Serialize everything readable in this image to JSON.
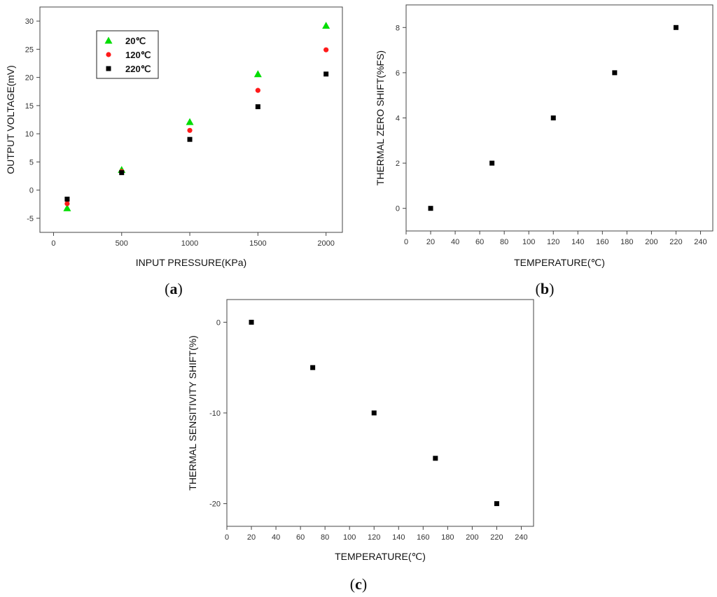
{
  "chart_data": [
    {
      "type": "scatter",
      "panel_label": "(a)",
      "xlabel": "INPUT PRESSURE(KPa)",
      "ylabel": "OUTPUT VOLTAGE(mV)",
      "xlim": [
        -100,
        2120
      ],
      "ylim": [
        -7.5,
        32.5
      ],
      "xticks": [
        0,
        500,
        1000,
        1500,
        2000
      ],
      "yticks": [
        -5,
        0,
        5,
        10,
        15,
        20,
        25,
        30
      ],
      "legend_position": "top-left",
      "series": [
        {
          "name": "20℃",
          "marker": "triangle",
          "color": "#00dd00",
          "x": [
            100,
            500,
            1000,
            1500,
            2000
          ],
          "y": [
            -3.2,
            3.6,
            12.1,
            20.6,
            29.2
          ]
        },
        {
          "name": "120℃",
          "marker": "circle",
          "color": "#ff1a1a",
          "x": [
            100,
            500,
            1000,
            1500,
            2000
          ],
          "y": [
            -2.4,
            3.3,
            10.6,
            17.7,
            24.9
          ]
        },
        {
          "name": "220℃",
          "marker": "square",
          "color": "#000000",
          "x": [
            100,
            500,
            1000,
            1500,
            2000
          ],
          "y": [
            -1.6,
            3.1,
            9.0,
            14.8,
            20.6
          ]
        }
      ]
    },
    {
      "type": "scatter",
      "panel_label": "(b)",
      "xlabel": "TEMPERATURE(℃)",
      "ylabel": "THERMAL ZERO SHIFT(%FS)",
      "xlim": [
        0,
        250
      ],
      "ylim": [
        -1,
        9
      ],
      "xticks": [
        0,
        20,
        40,
        60,
        80,
        100,
        120,
        140,
        160,
        180,
        200,
        220,
        240
      ],
      "yticks": [
        0,
        2,
        4,
        6,
        8
      ],
      "series": [
        {
          "marker": "square",
          "color": "#000000",
          "x": [
            20,
            70,
            120,
            170,
            220
          ],
          "y": [
            0,
            2,
            4,
            6,
            8
          ]
        }
      ]
    },
    {
      "type": "scatter",
      "panel_label": "(c)",
      "xlabel": "TEMPERATURE(℃)",
      "ylabel": "THERMAL SENSITIVITY SHIFT(%)",
      "xlim": [
        0,
        250
      ],
      "ylim": [
        -22.5,
        2.5
      ],
      "xticks": [
        0,
        20,
        40,
        60,
        80,
        100,
        120,
        140,
        160,
        180,
        200,
        220,
        240
      ],
      "yticks": [
        0,
        -10,
        -20
      ],
      "series": [
        {
          "marker": "square",
          "color": "#000000",
          "x": [
            20,
            70,
            120,
            170,
            220
          ],
          "y": [
            0,
            -5,
            -10,
            -15,
            -20
          ]
        }
      ]
    }
  ]
}
